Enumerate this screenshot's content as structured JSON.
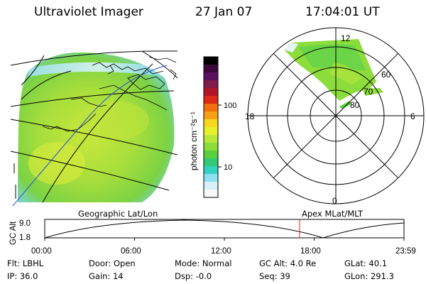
{
  "header": {
    "instrument": "Ultraviolet Imager",
    "date": "27 Jan 07",
    "time": "17:04:01 UT"
  },
  "colorbar": {
    "label": "photon cm⁻²s⁻¹",
    "ticks": [
      "100",
      "10"
    ],
    "colors": [
      "#000000",
      "#3a0a3c",
      "#5a1260",
      "#801c4a",
      "#b01528",
      "#dc2a14",
      "#f07010",
      "#f8a014",
      "#f8d81c",
      "#e8f02c",
      "#b8e83c",
      "#8cdc3c",
      "#58d03c",
      "#34c878",
      "#34d0c0",
      "#8ce0f0",
      "#d8f0f8",
      "#f8f8f8"
    ]
  },
  "geo_image": {
    "label": "Geographic Lat/Lon"
  },
  "polar_image": {
    "label": "Apex  MLat/MLT",
    "mlt_labels": [
      "12",
      "18",
      "6",
      "0"
    ],
    "mlat_labels": [
      "60",
      "70",
      "80"
    ]
  },
  "altitude_plot": {
    "ylabel": "GC Alt",
    "yticks": [
      "9.0",
      "1.8"
    ],
    "xticks": [
      "00:00",
      "06:00",
      "12:00",
      "18:00",
      "23:59"
    ],
    "marker_time": "17:04"
  },
  "status": {
    "flt": "Flt: LBHL",
    "ip": "IP: 36.0",
    "door": "Door: Open",
    "gain": "Gain: 14",
    "mode": "Mode: Normal",
    "dsp": "Dsp:    -0.0",
    "gc_alt": "GC Alt: 4.0 Re",
    "seq": "Seq: 39",
    "glat": "GLat:   40.1",
    "glon": "GLon: 291.3"
  }
}
